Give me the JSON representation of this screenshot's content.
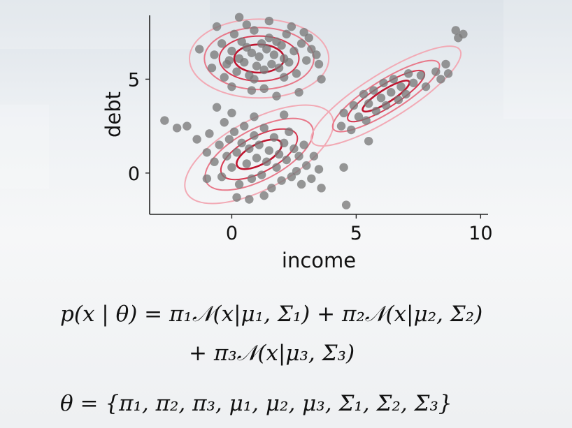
{
  "chart_data": {
    "type": "scatter",
    "xlabel": "income",
    "ylabel": "debt",
    "xlim": [
      -3.3,
      10.3
    ],
    "ylim": [
      -2.2,
      8.4
    ],
    "xticks": [
      0,
      5,
      10
    ],
    "yticks": [
      0,
      5
    ],
    "point_color": "#7a7a7a",
    "contour_colors": [
      "#c0142e",
      "#d83a52",
      "#e8798a",
      "#f2aab5"
    ],
    "clusters": [
      {
        "center": [
          1.1,
          6.1
        ],
        "points": [
          [
            -1.3,
            6.6
          ],
          [
            -0.7,
            6.3
          ],
          [
            -0.4,
            6.9
          ],
          [
            -0.2,
            5.8
          ],
          [
            0.0,
            6.5
          ],
          [
            0.1,
            7.4
          ],
          [
            0.2,
            5.4
          ],
          [
            0.3,
            6.1
          ],
          [
            0.4,
            7.0
          ],
          [
            0.5,
            5.9
          ],
          [
            0.6,
            6.7
          ],
          [
            0.7,
            5.2
          ],
          [
            0.8,
            6.4
          ],
          [
            0.9,
            7.6
          ],
          [
            1.0,
            5.7
          ],
          [
            1.1,
            6.2
          ],
          [
            1.2,
            6.9
          ],
          [
            1.3,
            5.5
          ],
          [
            1.4,
            6.6
          ],
          [
            1.5,
            7.2
          ],
          [
            1.6,
            5.8
          ],
          [
            1.7,
            6.3
          ],
          [
            1.8,
            7.0
          ],
          [
            1.9,
            5.6
          ],
          [
            2.0,
            6.8
          ],
          [
            2.1,
            6.1
          ],
          [
            2.2,
            7.4
          ],
          [
            2.3,
            5.9
          ],
          [
            2.5,
            6.5
          ],
          [
            2.6,
            5.3
          ],
          [
            2.8,
            6.9
          ],
          [
            3.0,
            6.0
          ],
          [
            3.2,
            6.6
          ],
          [
            3.5,
            5.8
          ],
          [
            3.6,
            5.0
          ],
          [
            -0.6,
            7.8
          ],
          [
            0.3,
            8.3
          ],
          [
            0.6,
            7.9
          ],
          [
            1.5,
            8.1
          ],
          [
            2.4,
            7.8
          ],
          [
            2.9,
            7.5
          ],
          [
            3.1,
            7.2
          ],
          [
            0.0,
            4.6
          ],
          [
            0.8,
            4.4
          ],
          [
            1.3,
            4.5
          ],
          [
            1.8,
            4.1
          ],
          [
            2.7,
            4.3
          ],
          [
            -0.8,
            5.6
          ],
          [
            -0.3,
            5.1
          ],
          [
            3.4,
            6.3
          ],
          [
            -0.1,
            6.0
          ],
          [
            0.9,
            5.0
          ],
          [
            2.1,
            5.1
          ]
        ]
      },
      {
        "center": [
          1.1,
          1.0
        ],
        "points": [
          [
            -1.8,
            2.5
          ],
          [
            -1.4,
            1.8
          ],
          [
            -1.0,
            1.1
          ],
          [
            -0.9,
            2.1
          ],
          [
            -0.7,
            0.6
          ],
          [
            -0.5,
            1.5
          ],
          [
            -0.4,
            -0.2
          ],
          [
            -0.3,
            2.7
          ],
          [
            -0.2,
            0.9
          ],
          [
            -0.1,
            1.8
          ],
          [
            0.0,
            0.3
          ],
          [
            0.1,
            2.2
          ],
          [
            0.2,
            1.1
          ],
          [
            0.3,
            -0.6
          ],
          [
            0.4,
            1.6
          ],
          [
            0.5,
            2.5
          ],
          [
            0.6,
            0.5
          ],
          [
            0.7,
            1.3
          ],
          [
            0.8,
            -0.3
          ],
          [
            0.9,
            2.0
          ],
          [
            1.0,
            0.8
          ],
          [
            1.1,
            1.5
          ],
          [
            1.2,
            -0.1
          ],
          [
            1.3,
            2.4
          ],
          [
            1.4,
            0.6
          ],
          [
            1.5,
            1.2
          ],
          [
            1.6,
            -0.8
          ],
          [
            1.7,
            1.9
          ],
          [
            1.8,
            0.3
          ],
          [
            1.9,
            1.0
          ],
          [
            2.0,
            -0.4
          ],
          [
            2.1,
            1.6
          ],
          [
            2.2,
            0.7
          ],
          [
            2.3,
            2.2
          ],
          [
            2.4,
            -0.2
          ],
          [
            2.5,
            1.3
          ],
          [
            2.6,
            0.1
          ],
          [
            2.7,
            0.9
          ],
          [
            2.8,
            -0.6
          ],
          [
            2.9,
            1.5
          ],
          [
            3.0,
            0.4
          ],
          [
            3.2,
            -0.3
          ],
          [
            3.3,
            0.9
          ],
          [
            3.5,
            0.2
          ],
          [
            3.6,
            -0.8
          ],
          [
            -1.0,
            -0.3
          ],
          [
            0.2,
            -1.3
          ],
          [
            0.7,
            -1.4
          ],
          [
            1.3,
            -1.2
          ],
          [
            -0.6,
            3.5
          ],
          [
            0.0,
            3.2
          ],
          [
            0.9,
            3.0
          ],
          [
            2.1,
            3.1
          ],
          [
            -2.7,
            2.8
          ],
          [
            -2.2,
            2.4
          ],
          [
            4.5,
            0.3
          ],
          [
            4.6,
            -1.7
          ]
        ]
      },
      {
        "center": [
          6.2,
          4.1
        ],
        "points": [
          [
            4.4,
            2.5
          ],
          [
            4.5,
            3.2
          ],
          [
            4.8,
            2.3
          ],
          [
            4.9,
            3.6
          ],
          [
            5.1,
            3.0
          ],
          [
            5.3,
            4.2
          ],
          [
            5.4,
            2.8
          ],
          [
            5.5,
            3.7
          ],
          [
            5.7,
            4.4
          ],
          [
            5.8,
            3.3
          ],
          [
            6.0,
            4.0
          ],
          [
            6.1,
            4.8
          ],
          [
            6.2,
            3.6
          ],
          [
            6.4,
            4.3
          ],
          [
            6.5,
            5.0
          ],
          [
            6.7,
            3.9
          ],
          [
            6.8,
            4.6
          ],
          [
            7.0,
            4.2
          ],
          [
            7.1,
            5.3
          ],
          [
            7.3,
            4.8
          ],
          [
            7.6,
            5.2
          ],
          [
            7.8,
            4.6
          ],
          [
            8.2,
            5.4
          ],
          [
            8.4,
            5.0
          ],
          [
            8.6,
            5.8
          ],
          [
            8.7,
            5.3
          ],
          [
            9.1,
            7.2
          ],
          [
            9.0,
            7.6
          ],
          [
            9.3,
            7.4
          ],
          [
            5.5,
            1.7
          ]
        ]
      }
    ]
  },
  "formula": {
    "line1": "p(x | θ) = π₁𝒩(x|μ₁, Σ₁) + π₂𝒩(x|μ₂, Σ₂)",
    "line2": "+ π₃𝒩(x|μ₃, Σ₃)",
    "line3": "θ = {π₁, π₂, π₃, μ₁, μ₂, μ₃, Σ₁, Σ₂, Σ₃}"
  }
}
